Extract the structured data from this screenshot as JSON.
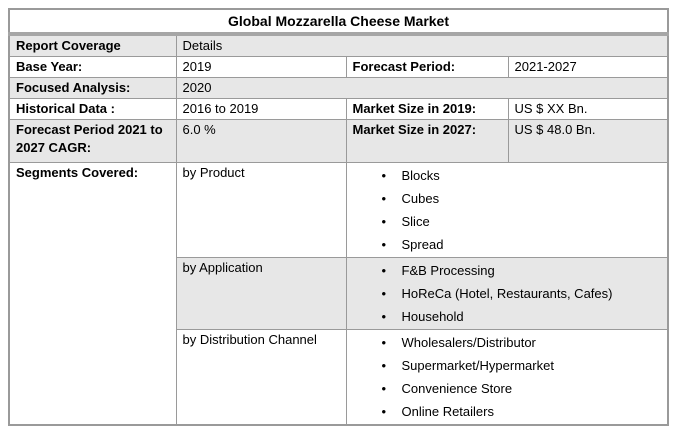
{
  "table": {
    "title": "Global Mozzarella Cheese Market",
    "rows": {
      "report_coverage": {
        "label": "Report Coverage",
        "value": "Details"
      },
      "base_year": {
        "label": "Base Year:",
        "value": "2019"
      },
      "forecast_period": {
        "label": "Forecast Period:",
        "value": "2021-2027"
      },
      "focused_analysis": {
        "label": "Focused Analysis:",
        "value": "2020"
      },
      "historical_data": {
        "label": "Historical Data :",
        "value": "2016 to 2019"
      },
      "market_size_2019": {
        "label": "Market Size in 2019:",
        "value": "US $ XX Bn."
      },
      "cagr": {
        "label": "Forecast Period 2021 to 2027 CAGR:",
        "value": "6.0 %"
      },
      "market_size_2027": {
        "label": "Market Size in 2027:",
        "value": "US $ 48.0 Bn."
      },
      "segments": {
        "label": "Segments Covered:",
        "groups": [
          {
            "name": "by Product",
            "items": [
              "Blocks",
              "Cubes",
              "Slice",
              "Spread"
            ]
          },
          {
            "name": "by Application",
            "items": [
              "F&B Processing",
              "HoReCa (Hotel, Restaurants, Cafes)",
              "Household"
            ]
          },
          {
            "name": "by Distribution Channel",
            "items": [
              "Wholesalers/Distributor",
              "Supermarket/Hypermarket",
              "Convenience Store",
              "Online Retailers"
            ]
          }
        ]
      }
    }
  },
  "icons": {
    "bullet": "•"
  },
  "colors": {
    "row_shade": "#e7e7e7",
    "grid_border": "#9a9a9a",
    "title_separator": "#a6a6a6",
    "text": "#000000",
    "background": "#ffffff"
  }
}
